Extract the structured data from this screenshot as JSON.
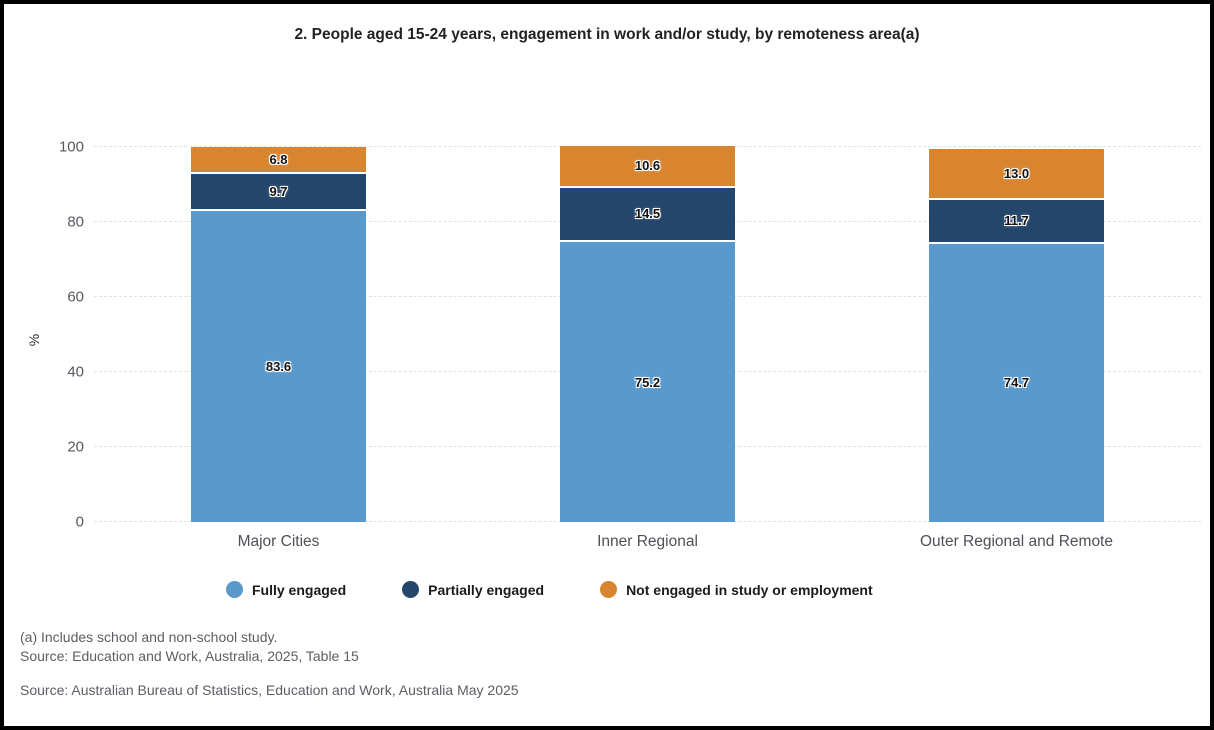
{
  "page": {
    "title": "2. People aged 15-24 years, engagement in work and/or study, by remoteness area(a)"
  },
  "chart_data": {
    "type": "bar",
    "stacked": true,
    "orientation": "vertical",
    "categories": [
      "Major Cities",
      "Inner Regional",
      "Outer Regional and Remote"
    ],
    "series": [
      {
        "name": "Fully engaged",
        "color": "#5999CC",
        "values": [
          83.6,
          75.2,
          74.7
        ]
      },
      {
        "name": "Partially engaged",
        "color": "#24466B",
        "values": [
          9.7,
          14.5,
          11.7
        ]
      },
      {
        "name": "Not engaged in study or employment",
        "color": "#D9842F",
        "values": [
          6.8,
          10.6,
          13.0
        ]
      }
    ],
    "ylabel": "%",
    "ylim": [
      0,
      100
    ],
    "yticks": [
      0,
      20,
      40,
      60,
      80,
      100
    ],
    "grid": "horizontal-dashed",
    "legend_position": "bottom",
    "value_labels": true
  },
  "footnotes": {
    "note": "(a) Includes school and non-school study.",
    "table_source": "Source: Education and Work, Australia, 2025, Table 15",
    "source": "Source: Australian Bureau of Statistics, Education and Work, Australia May 2025"
  }
}
